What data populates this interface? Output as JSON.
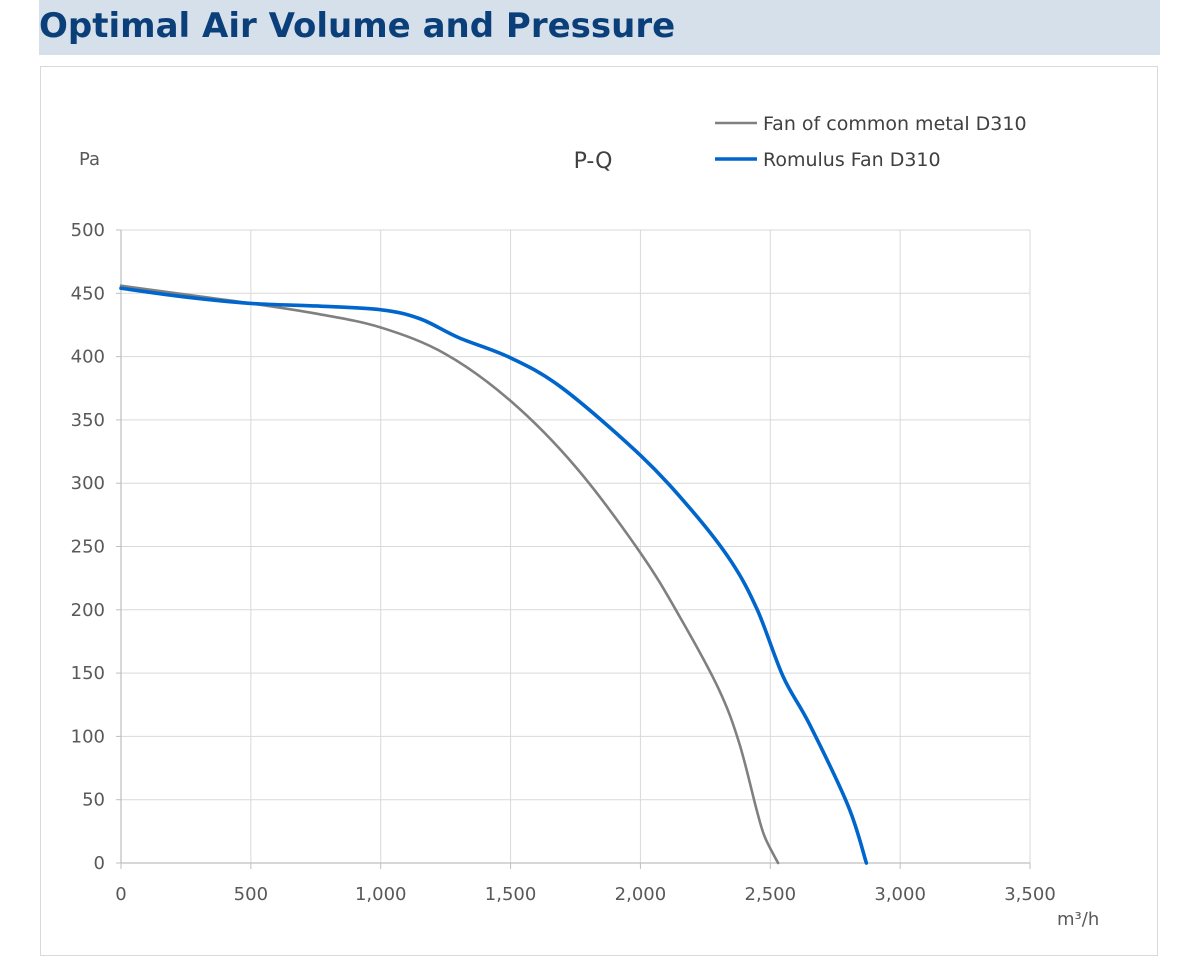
{
  "header": {
    "title": "Optimal Air Volume and Pressure"
  },
  "chart_data": {
    "type": "line",
    "title": "P-Q",
    "ylabel": "Pa",
    "xlabel": "m³/h",
    "xlim": [
      0,
      3500
    ],
    "ylim": [
      0,
      500
    ],
    "x_ticks": [
      0,
      500,
      1000,
      1500,
      2000,
      2500,
      3000,
      3500
    ],
    "x_tick_labels": [
      "0",
      "500",
      "1,000",
      "1,500",
      "2,000",
      "2,500",
      "3,000",
      "3,500"
    ],
    "y_ticks": [
      0,
      50,
      100,
      150,
      200,
      250,
      300,
      350,
      400,
      450,
      500
    ],
    "y_tick_labels": [
      "0",
      "50",
      "100",
      "150",
      "200",
      "250",
      "300",
      "350",
      "400",
      "450",
      "500"
    ],
    "grid": true,
    "legend_position": "top-right",
    "series": [
      {
        "name": "Fan of common metal D310",
        "color": "#808080",
        "x": [
          0,
          250,
          500,
          750,
          1000,
          1250,
          1500,
          1750,
          2000,
          2150,
          2300,
          2380,
          2450,
          2480,
          2530
        ],
        "y": [
          456,
          449,
          442,
          434,
          423,
          402,
          365,
          313,
          245,
          195,
          138,
          95,
          40,
          20,
          0
        ]
      },
      {
        "name": "Romulus Fan D310",
        "color": "#0066cc",
        "x": [
          0,
          250,
          500,
          750,
          1000,
          1150,
          1300,
          1500,
          1700,
          2000,
          2200,
          2350,
          2450,
          2550,
          2650,
          2800,
          2870
        ],
        "y": [
          454,
          447,
          442,
          440,
          437,
          430,
          415,
          399,
          375,
          322,
          278,
          238,
          200,
          147,
          110,
          45,
          0
        ]
      }
    ]
  }
}
